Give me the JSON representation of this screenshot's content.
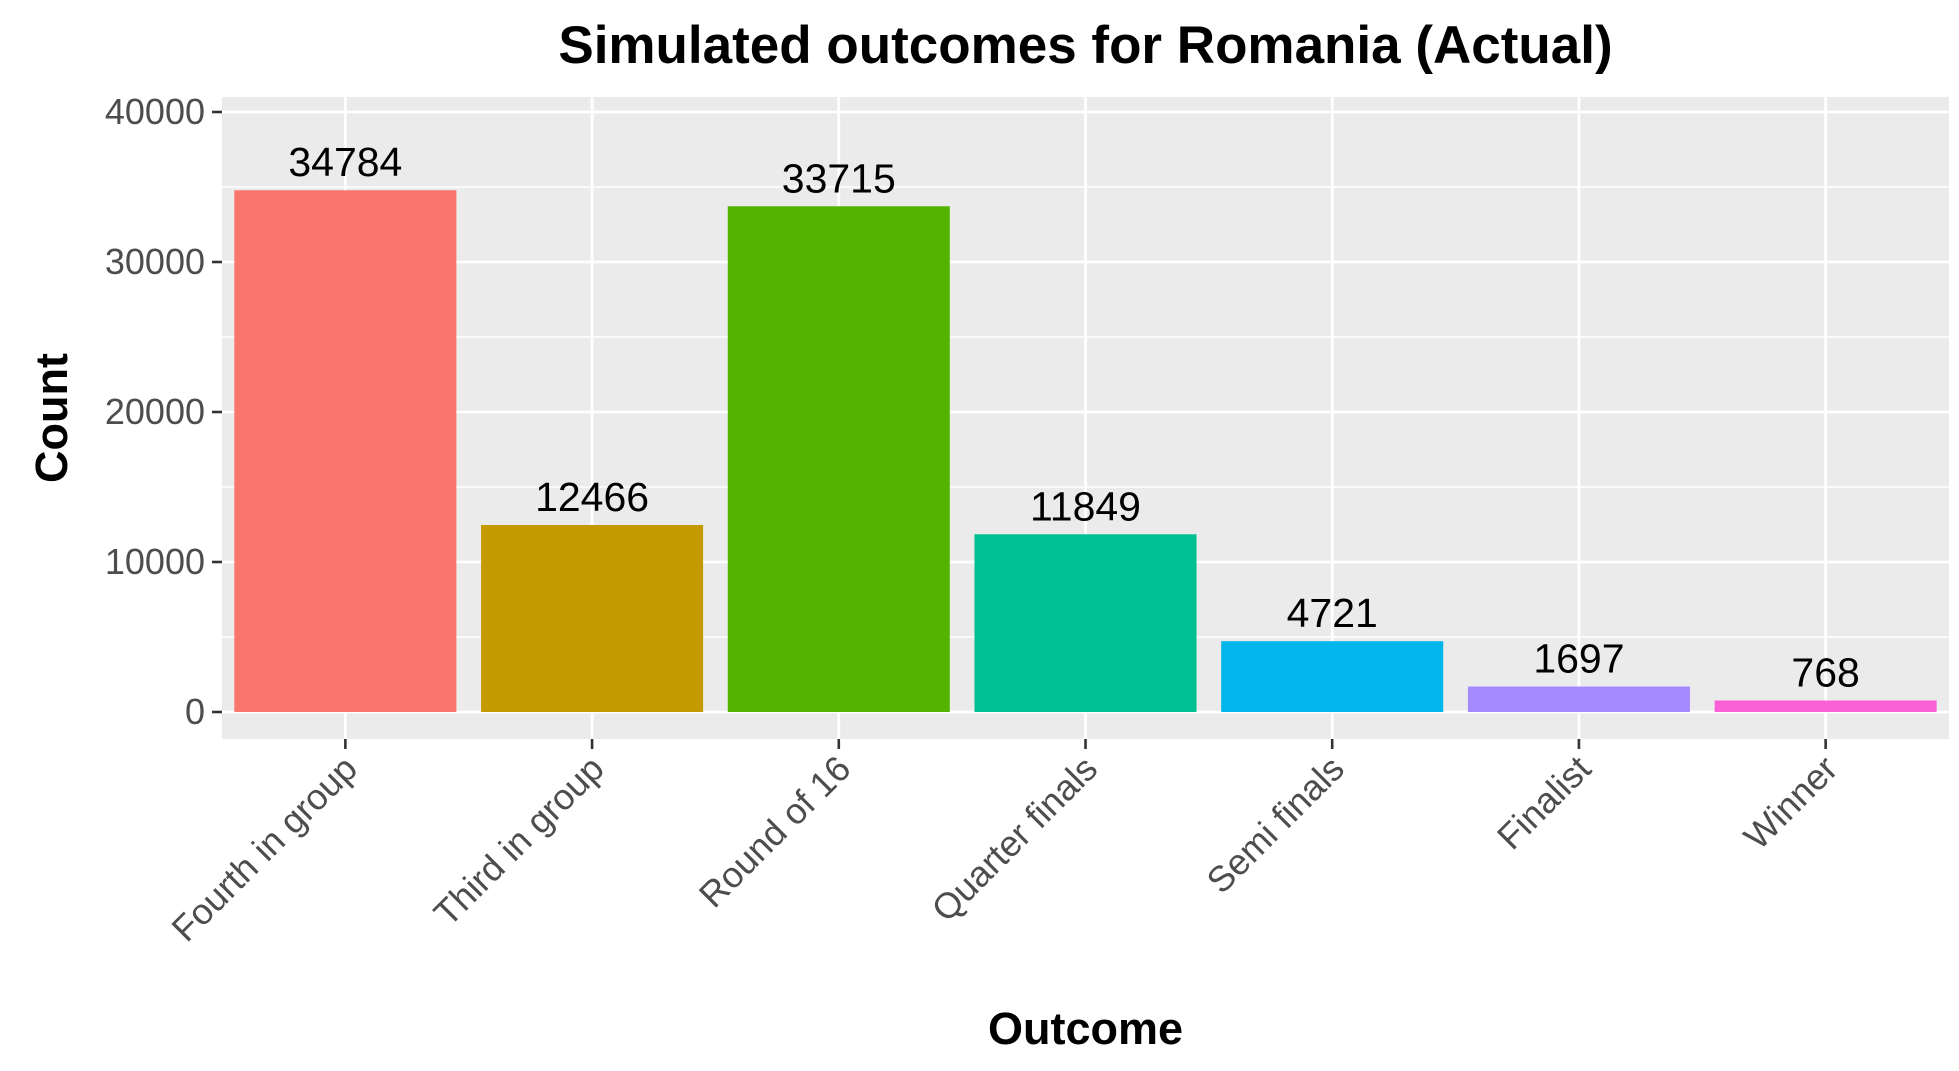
{
  "chart_data": {
    "type": "bar",
    "title": "Simulated outcomes for Romania (Actual)",
    "xlabel": "Outcome",
    "ylabel": "Count",
    "categories": [
      "Fourth in group",
      "Third in group",
      "Round of 16",
      "Quarter finals",
      "Semi finals",
      "Finalist",
      "Winner"
    ],
    "values": [
      34784,
      12466,
      33715,
      11849,
      4721,
      1697,
      768
    ],
    "data_labels": [
      "34784",
      "12466",
      "33715",
      "11849",
      "4721",
      "1697",
      "768"
    ],
    "colors": [
      "#F8766D",
      "#C49A00",
      "#53B400",
      "#00C094",
      "#00B6EB",
      "#A58AFF",
      "#FB61D7"
    ],
    "ylim": [
      -1800,
      41000
    ],
    "yticks": [
      0,
      10000,
      20000,
      30000,
      40000
    ],
    "ytick_labels": [
      "0",
      "10000",
      "20000",
      "30000",
      "40000"
    ],
    "grid": true,
    "legend": "none",
    "panel_background": "#EBEBEB",
    "gridline_color": "#FFFFFF"
  }
}
